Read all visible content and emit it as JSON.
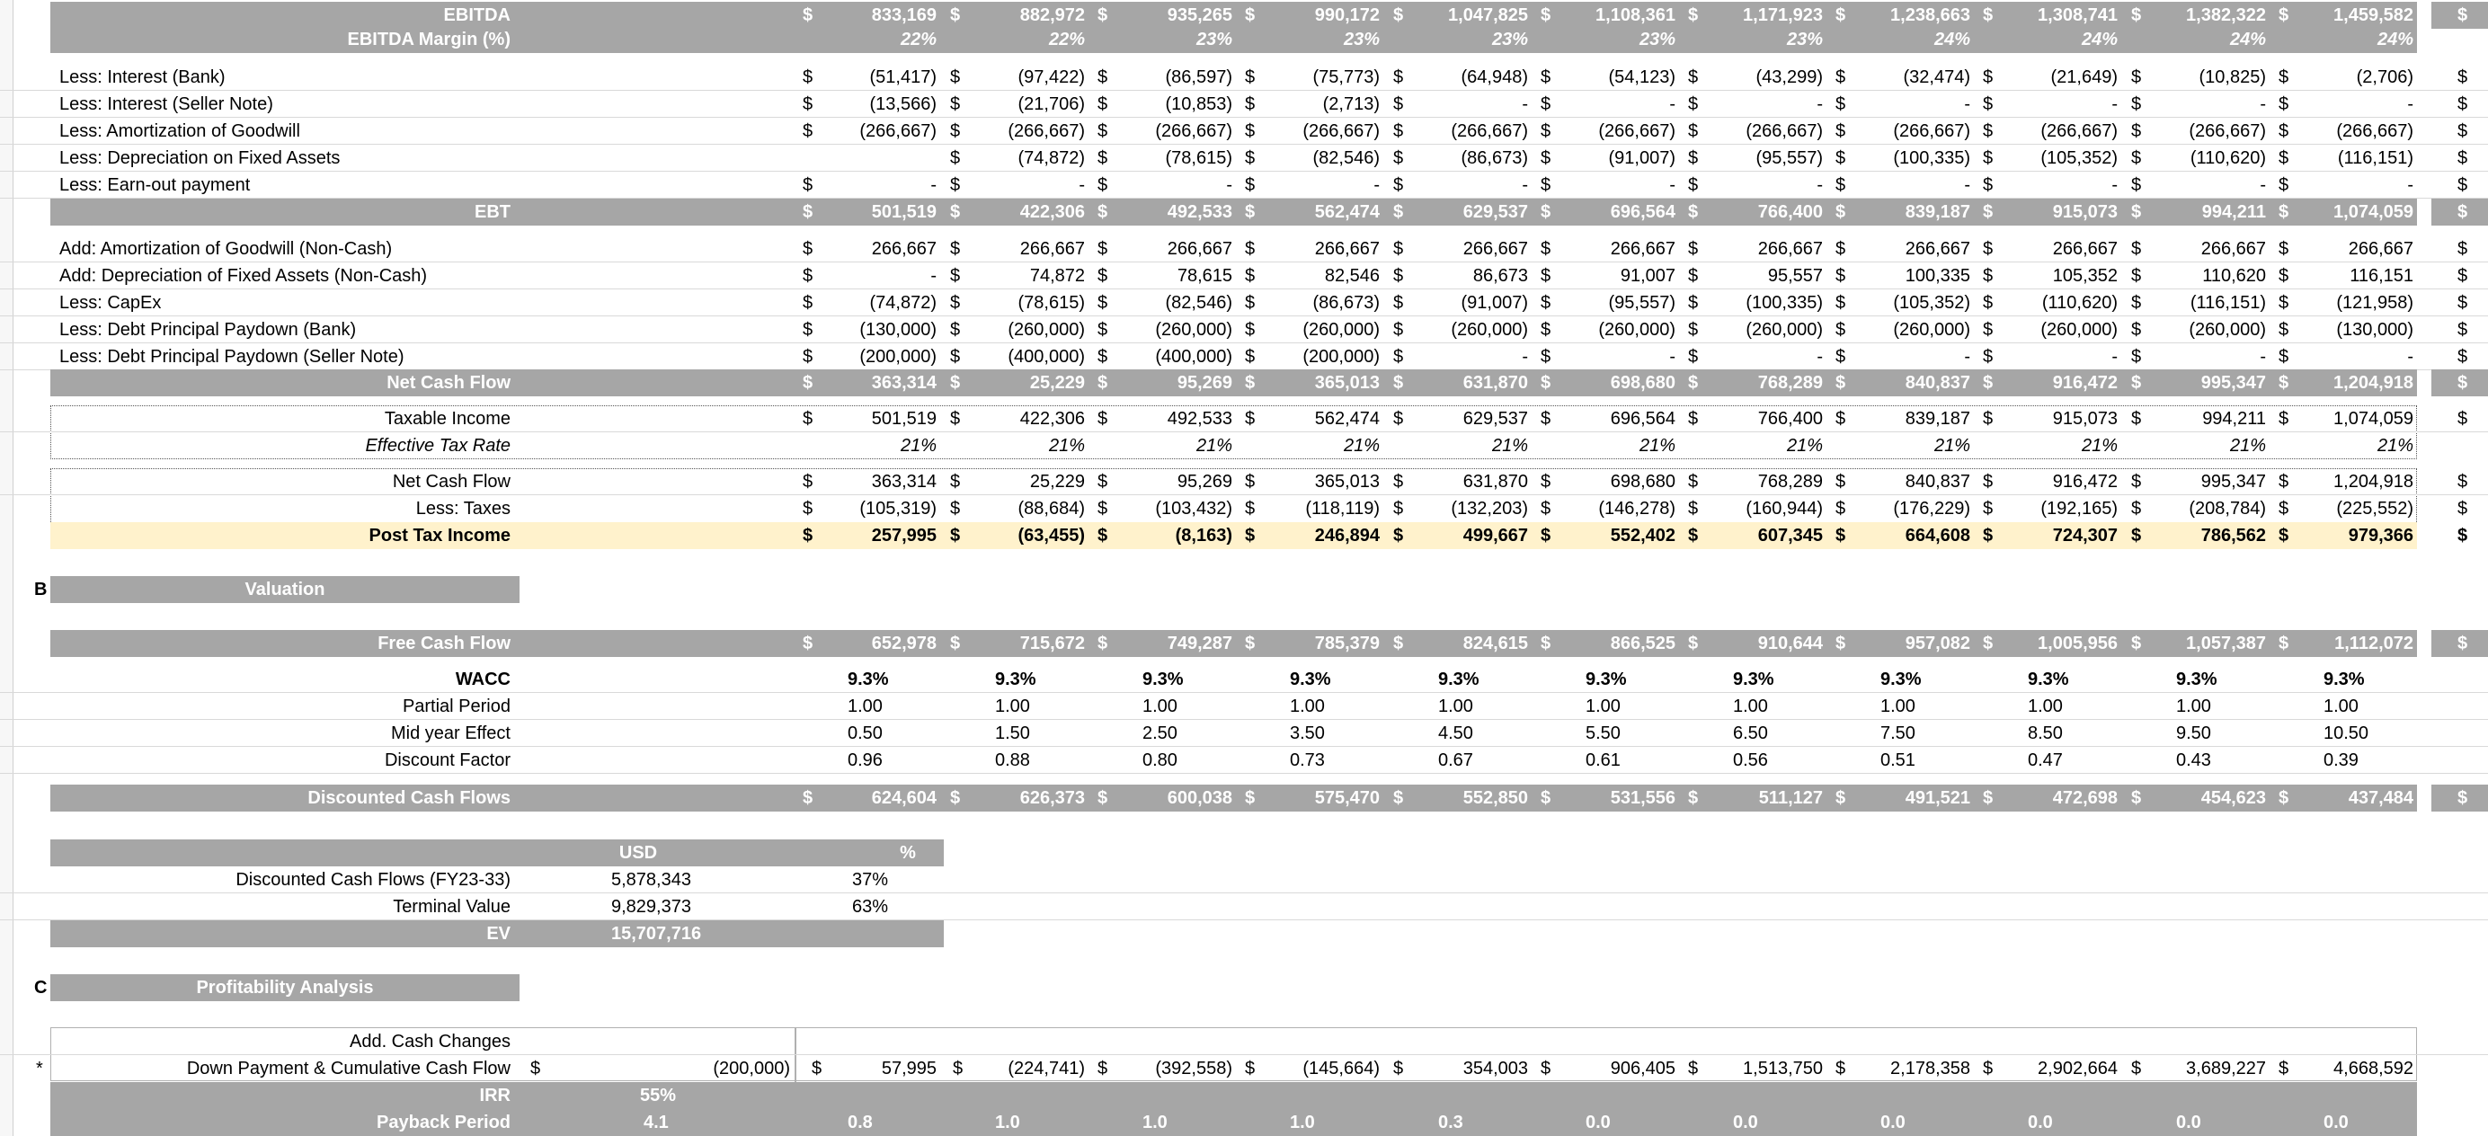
{
  "ebitda_block": [
    {
      "label": "EBITDA",
      "style": "band",
      "cur": [
        "$",
        "$",
        "$",
        "$",
        "$",
        "$",
        "$",
        "$",
        "$",
        "$",
        "$"
      ],
      "values": [
        "833,169",
        "882,972",
        "935,265",
        "990,172",
        "1,047,825",
        "1,108,361",
        "1,171,923",
        "1,238,663",
        "1,308,741",
        "1,382,322",
        "1,459,582"
      ],
      "far": "$"
    },
    {
      "label": "EBITDA Margin (%)",
      "style": "bandpct",
      "cur": [],
      "values": [
        "22%",
        "22%",
        "23%",
        "23%",
        "23%",
        "23%",
        "23%",
        "24%",
        "24%",
        "24%",
        "24%"
      ],
      "far": ""
    }
  ],
  "ebt_block": [
    {
      "label": "Less: Interest (Bank)",
      "cur": [
        "$",
        "$",
        "$",
        "$",
        "$",
        "$",
        "$",
        "$",
        "$",
        "$",
        "$"
      ],
      "values": [
        "(51,417)",
        "(97,422)",
        "(86,597)",
        "(75,773)",
        "(64,948)",
        "(54,123)",
        "(43,299)",
        "(32,474)",
        "(21,649)",
        "(10,825)",
        "(2,706)"
      ],
      "far": "$"
    },
    {
      "label": "Less: Interest (Seller Note)",
      "cur": [
        "$",
        "$",
        "$",
        "$",
        "$",
        "$",
        "$",
        "$",
        "$",
        "$",
        "$"
      ],
      "values": [
        "(13,566)",
        "(21,706)",
        "(10,853)",
        "(2,713)",
        "-",
        "-",
        "-",
        "-",
        "-",
        "-",
        "-"
      ],
      "far": "$"
    },
    {
      "label": "Less: Amortization of Goodwill",
      "cur": [
        "$",
        "$",
        "$",
        "$",
        "$",
        "$",
        "$",
        "$",
        "$",
        "$",
        "$"
      ],
      "values": [
        "(266,667)",
        "(266,667)",
        "(266,667)",
        "(266,667)",
        "(266,667)",
        "(266,667)",
        "(266,667)",
        "(266,667)",
        "(266,667)",
        "(266,667)",
        "(266,667)"
      ],
      "far": "$"
    },
    {
      "label": "Less: Depreciation on Fixed Assets",
      "cur": [
        "",
        "$",
        "$",
        "$",
        "$",
        "$",
        "$",
        "$",
        "$",
        "$",
        "$"
      ],
      "values": [
        "",
        "(74,872)",
        "(78,615)",
        "(82,546)",
        "(86,673)",
        "(91,007)",
        "(95,557)",
        "(100,335)",
        "(105,352)",
        "(110,620)",
        "(116,151)"
      ],
      "far": "$"
    },
    {
      "label": "Less: Earn-out payment",
      "cur": [
        "$",
        "$",
        "$",
        "$",
        "$",
        "$",
        "$",
        "$",
        "$",
        "$",
        "$"
      ],
      "values": [
        "-",
        "-",
        "-",
        "-",
        "-",
        "-",
        "-",
        "-",
        "-",
        "-",
        "-"
      ],
      "far": "$"
    }
  ],
  "ebt_row": {
    "label": "EBT",
    "cur": [
      "$",
      "$",
      "$",
      "$",
      "$",
      "$",
      "$",
      "$",
      "$",
      "$",
      "$"
    ],
    "values": [
      "501,519",
      "422,306",
      "492,533",
      "562,474",
      "629,537",
      "696,564",
      "766,400",
      "839,187",
      "915,073",
      "994,211",
      "1,074,059"
    ],
    "far": "$"
  },
  "cash_block": [
    {
      "label": "Add: Amortization of Goodwill (Non-Cash)",
      "cur": [
        "$",
        "$",
        "$",
        "$",
        "$",
        "$",
        "$",
        "$",
        "$",
        "$",
        "$"
      ],
      "values": [
        "266,667",
        "266,667",
        "266,667",
        "266,667",
        "266,667",
        "266,667",
        "266,667",
        "266,667",
        "266,667",
        "266,667",
        "266,667"
      ],
      "far": "$"
    },
    {
      "label": "Add: Depreciation of Fixed Assets (Non-Cash)",
      "cur": [
        "$",
        "$",
        "$",
        "$",
        "$",
        "$",
        "$",
        "$",
        "$",
        "$",
        "$"
      ],
      "values": [
        "-",
        "74,872",
        "78,615",
        "82,546",
        "86,673",
        "91,007",
        "95,557",
        "100,335",
        "105,352",
        "110,620",
        "116,151"
      ],
      "far": "$"
    },
    {
      "label": "Less: CapEx",
      "cur": [
        "$",
        "$",
        "$",
        "$",
        "$",
        "$",
        "$",
        "$",
        "$",
        "$",
        "$"
      ],
      "values": [
        "(74,872)",
        "(78,615)",
        "(82,546)",
        "(86,673)",
        "(91,007)",
        "(95,557)",
        "(100,335)",
        "(105,352)",
        "(110,620)",
        "(116,151)",
        "(121,958)"
      ],
      "far": "$"
    },
    {
      "label": "Less: Debt Principal Paydown (Bank)",
      "cur": [
        "$",
        "$",
        "$",
        "$",
        "$",
        "$",
        "$",
        "$",
        "$",
        "$",
        "$"
      ],
      "values": [
        "(130,000)",
        "(260,000)",
        "(260,000)",
        "(260,000)",
        "(260,000)",
        "(260,000)",
        "(260,000)",
        "(260,000)",
        "(260,000)",
        "(260,000)",
        "(130,000)"
      ],
      "far": "$"
    },
    {
      "label": "Less: Debt Principal Paydown (Seller Note)",
      "cur": [
        "$",
        "$",
        "$",
        "$",
        "$",
        "$",
        "$",
        "$",
        "$",
        "$",
        "$"
      ],
      "values": [
        "(200,000)",
        "(400,000)",
        "(400,000)",
        "(200,000)",
        "-",
        "-",
        "-",
        "-",
        "-",
        "-",
        "-"
      ],
      "far": "$"
    }
  ],
  "net_cash_flow_row": {
    "label": "Net Cash Flow",
    "cur": [
      "$",
      "$",
      "$",
      "$",
      "$",
      "$",
      "$",
      "$",
      "$",
      "$",
      "$"
    ],
    "values": [
      "363,314",
      "25,229",
      "95,269",
      "365,013",
      "631,870",
      "698,680",
      "768,289",
      "840,837",
      "916,472",
      "995,347",
      "1,204,918"
    ],
    "far": "$"
  },
  "tax_block": [
    {
      "label": "Taxable Income",
      "style": "plainr",
      "cur": [
        "$",
        "$",
        "$",
        "$",
        "$",
        "$",
        "$",
        "$",
        "$",
        "$",
        "$"
      ],
      "values": [
        "501,519",
        "422,306",
        "492,533",
        "562,474",
        "629,537",
        "696,564",
        "766,400",
        "839,187",
        "915,073",
        "994,211",
        "1,074,059"
      ],
      "far": "$"
    },
    {
      "label": "Effective Tax Rate",
      "style": "pctr",
      "cur": [],
      "values": [
        "21%",
        "21%",
        "21%",
        "21%",
        "21%",
        "21%",
        "21%",
        "21%",
        "21%",
        "21%",
        "21%"
      ],
      "far": ""
    }
  ],
  "post_tax_block": [
    {
      "label": "Net Cash Flow",
      "style": "plainr",
      "cur": [
        "$",
        "$",
        "$",
        "$",
        "$",
        "$",
        "$",
        "$",
        "$",
        "$",
        "$"
      ],
      "values": [
        "363,314",
        "25,229",
        "95,269",
        "365,013",
        "631,870",
        "698,680",
        "768,289",
        "840,837",
        "916,472",
        "995,347",
        "1,204,918"
      ],
      "far": "$"
    },
    {
      "label": "Less: Taxes",
      "style": "plainr",
      "cur": [
        "$",
        "$",
        "$",
        "$",
        "$",
        "$",
        "$",
        "$",
        "$",
        "$",
        "$"
      ],
      "values": [
        "(105,319)",
        "(88,684)",
        "(103,432)",
        "(118,119)",
        "(132,203)",
        "(146,278)",
        "(160,944)",
        "(176,229)",
        "(192,165)",
        "(208,784)",
        "(225,552)"
      ],
      "far": "$"
    },
    {
      "label": "Post Tax Income",
      "style": "hlbold",
      "cur": [
        "$",
        "$",
        "$",
        "$",
        "$",
        "$",
        "$",
        "$",
        "$",
        "$",
        "$"
      ],
      "values": [
        "257,995",
        "(63,455)",
        "(8,163)",
        "246,894",
        "499,667",
        "552,402",
        "607,345",
        "664,608",
        "724,307",
        "786,562",
        "979,366"
      ],
      "far": "$"
    }
  ],
  "valuation": {
    "section_letter": "B",
    "section_title": "Valuation",
    "fcf": {
      "label": "Free Cash Flow",
      "cur": [
        "$",
        "$",
        "$",
        "$",
        "$",
        "$",
        "$",
        "$",
        "$",
        "$",
        "$"
      ],
      "values": [
        "652,978",
        "715,672",
        "749,287",
        "785,379",
        "824,615",
        "866,525",
        "910,644",
        "957,082",
        "1,005,956",
        "1,057,387",
        "1,112,072"
      ],
      "far": "$"
    },
    "params": [
      {
        "label": "WACC",
        "bold": true,
        "values": [
          "9.3%",
          "9.3%",
          "9.3%",
          "9.3%",
          "9.3%",
          "9.3%",
          "9.3%",
          "9.3%",
          "9.3%",
          "9.3%",
          "9.3%"
        ]
      },
      {
        "label": "Partial Period",
        "bold": false,
        "values": [
          "1.00",
          "1.00",
          "1.00",
          "1.00",
          "1.00",
          "1.00",
          "1.00",
          "1.00",
          "1.00",
          "1.00",
          "1.00"
        ]
      },
      {
        "label": "Mid year Effect",
        "bold": false,
        "values": [
          "0.50",
          "1.50",
          "2.50",
          "3.50",
          "4.50",
          "5.50",
          "6.50",
          "7.50",
          "8.50",
          "9.50",
          "10.50"
        ]
      },
      {
        "label": "Discount Factor",
        "bold": false,
        "values": [
          "0.96",
          "0.88",
          "0.80",
          "0.73",
          "0.67",
          "0.61",
          "0.56",
          "0.51",
          "0.47",
          "0.43",
          "0.39"
        ]
      }
    ],
    "dcf": {
      "label": "Discounted Cash Flows",
      "cur": [
        "$",
        "$",
        "$",
        "$",
        "$",
        "$",
        "$",
        "$",
        "$",
        "$",
        "$"
      ],
      "values": [
        "624,604",
        "626,373",
        "600,038",
        "575,470",
        "552,850",
        "531,556",
        "511,127",
        "491,521",
        "472,698",
        "454,623",
        "437,484"
      ],
      "far": "$"
    },
    "ev_table": {
      "headers": [
        "USD",
        "%"
      ],
      "rows": [
        {
          "label": "Discounted Cash Flows (FY23-33)",
          "usd": "5,878,343",
          "pct": "37%"
        },
        {
          "label": "Terminal Value",
          "usd": "9,829,373",
          "pct": "63%"
        }
      ],
      "total": {
        "label": "EV",
        "usd": "15,707,716"
      }
    }
  },
  "profitability": {
    "section_letter": "C",
    "section_title": "Profitability Analysis",
    "add_cash_label": "Add. Cash Changes",
    "marker": "*",
    "cum": {
      "label": "Down Payment & Cumulative Cash Flow",
      "down_cur": "$",
      "down_value": "(200,000)",
      "cur": [
        "$",
        "$",
        "$",
        "$",
        "$",
        "$",
        "$",
        "$",
        "$",
        "$",
        "$"
      ],
      "values": [
        "57,995",
        "(224,741)",
        "(392,558)",
        "(145,664)",
        "354,003",
        "906,405",
        "1,513,750",
        "2,178,358",
        "2,902,664",
        "3,689,227",
        "4,668,592"
      ]
    },
    "irr": {
      "label": "IRR",
      "value": "55%"
    },
    "payback": {
      "label": "Payback Period",
      "value": "4.1",
      "values": [
        "0.8",
        "1.0",
        "1.0",
        "1.0",
        "0.3",
        "0.0",
        "0.0",
        "0.0",
        "0.0",
        "0.0",
        "0.0"
      ]
    }
  }
}
